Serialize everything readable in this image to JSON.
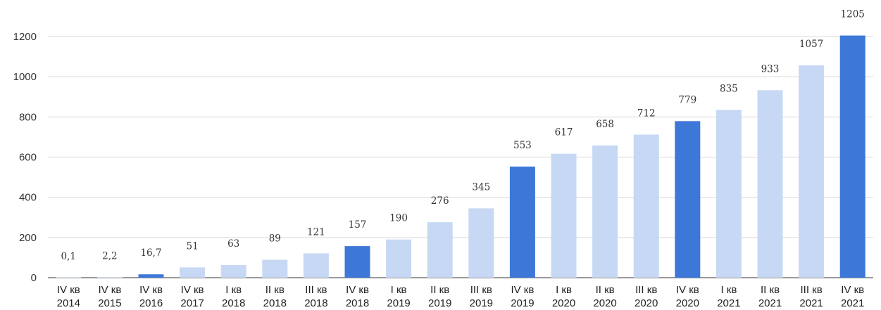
{
  "chart_data": {
    "type": "bar",
    "title": "",
    "xlabel": "",
    "ylabel": "",
    "ylim": [
      0,
      1200
    ],
    "yticks": [
      "0",
      "200",
      "400",
      "600",
      "800",
      "1000",
      "1200"
    ],
    "grid": "horizontal",
    "legend": "none",
    "colors": {
      "regular": "#c7d8f4",
      "highlight": "#3d78d8"
    },
    "categories": [
      [
        "IV кв",
        "2014"
      ],
      [
        "IV кв",
        "2015"
      ],
      [
        "IV кв",
        "2016"
      ],
      [
        "IV кв",
        "2017"
      ],
      [
        "I кв",
        "2018"
      ],
      [
        "II кв",
        "2018"
      ],
      [
        "III кв",
        "2018"
      ],
      [
        "IV кв",
        "2018"
      ],
      [
        "I кв",
        "2019"
      ],
      [
        "II кв",
        "2019"
      ],
      [
        "III кв",
        "2019"
      ],
      [
        "IV кв",
        "2019"
      ],
      [
        "I кв",
        "2020"
      ],
      [
        "II кв",
        "2020"
      ],
      [
        "III кв",
        "2020"
      ],
      [
        "IV кв",
        "2020"
      ],
      [
        "I кв",
        "2021"
      ],
      [
        "II кв",
        "2021"
      ],
      [
        "III кв",
        "2021"
      ],
      [
        "IV кв",
        "2021"
      ]
    ],
    "values": [
      0.1,
      2.2,
      16.7,
      51,
      63,
      89,
      121,
      157,
      190,
      276,
      345,
      553,
      617,
      658,
      712,
      779,
      835,
      933,
      1057,
      1205
    ],
    "labels": [
      "0,1",
      "2,2",
      "16,7",
      "51",
      "63",
      "89",
      "121",
      "157",
      "190",
      "276",
      "345",
      "553",
      "617",
      "658",
      "712",
      "779",
      "835",
      "933",
      "1057",
      "1205"
    ],
    "highlight": [
      false,
      false,
      true,
      false,
      false,
      false,
      false,
      true,
      false,
      false,
      false,
      true,
      false,
      false,
      false,
      true,
      false,
      false,
      false,
      true
    ]
  }
}
